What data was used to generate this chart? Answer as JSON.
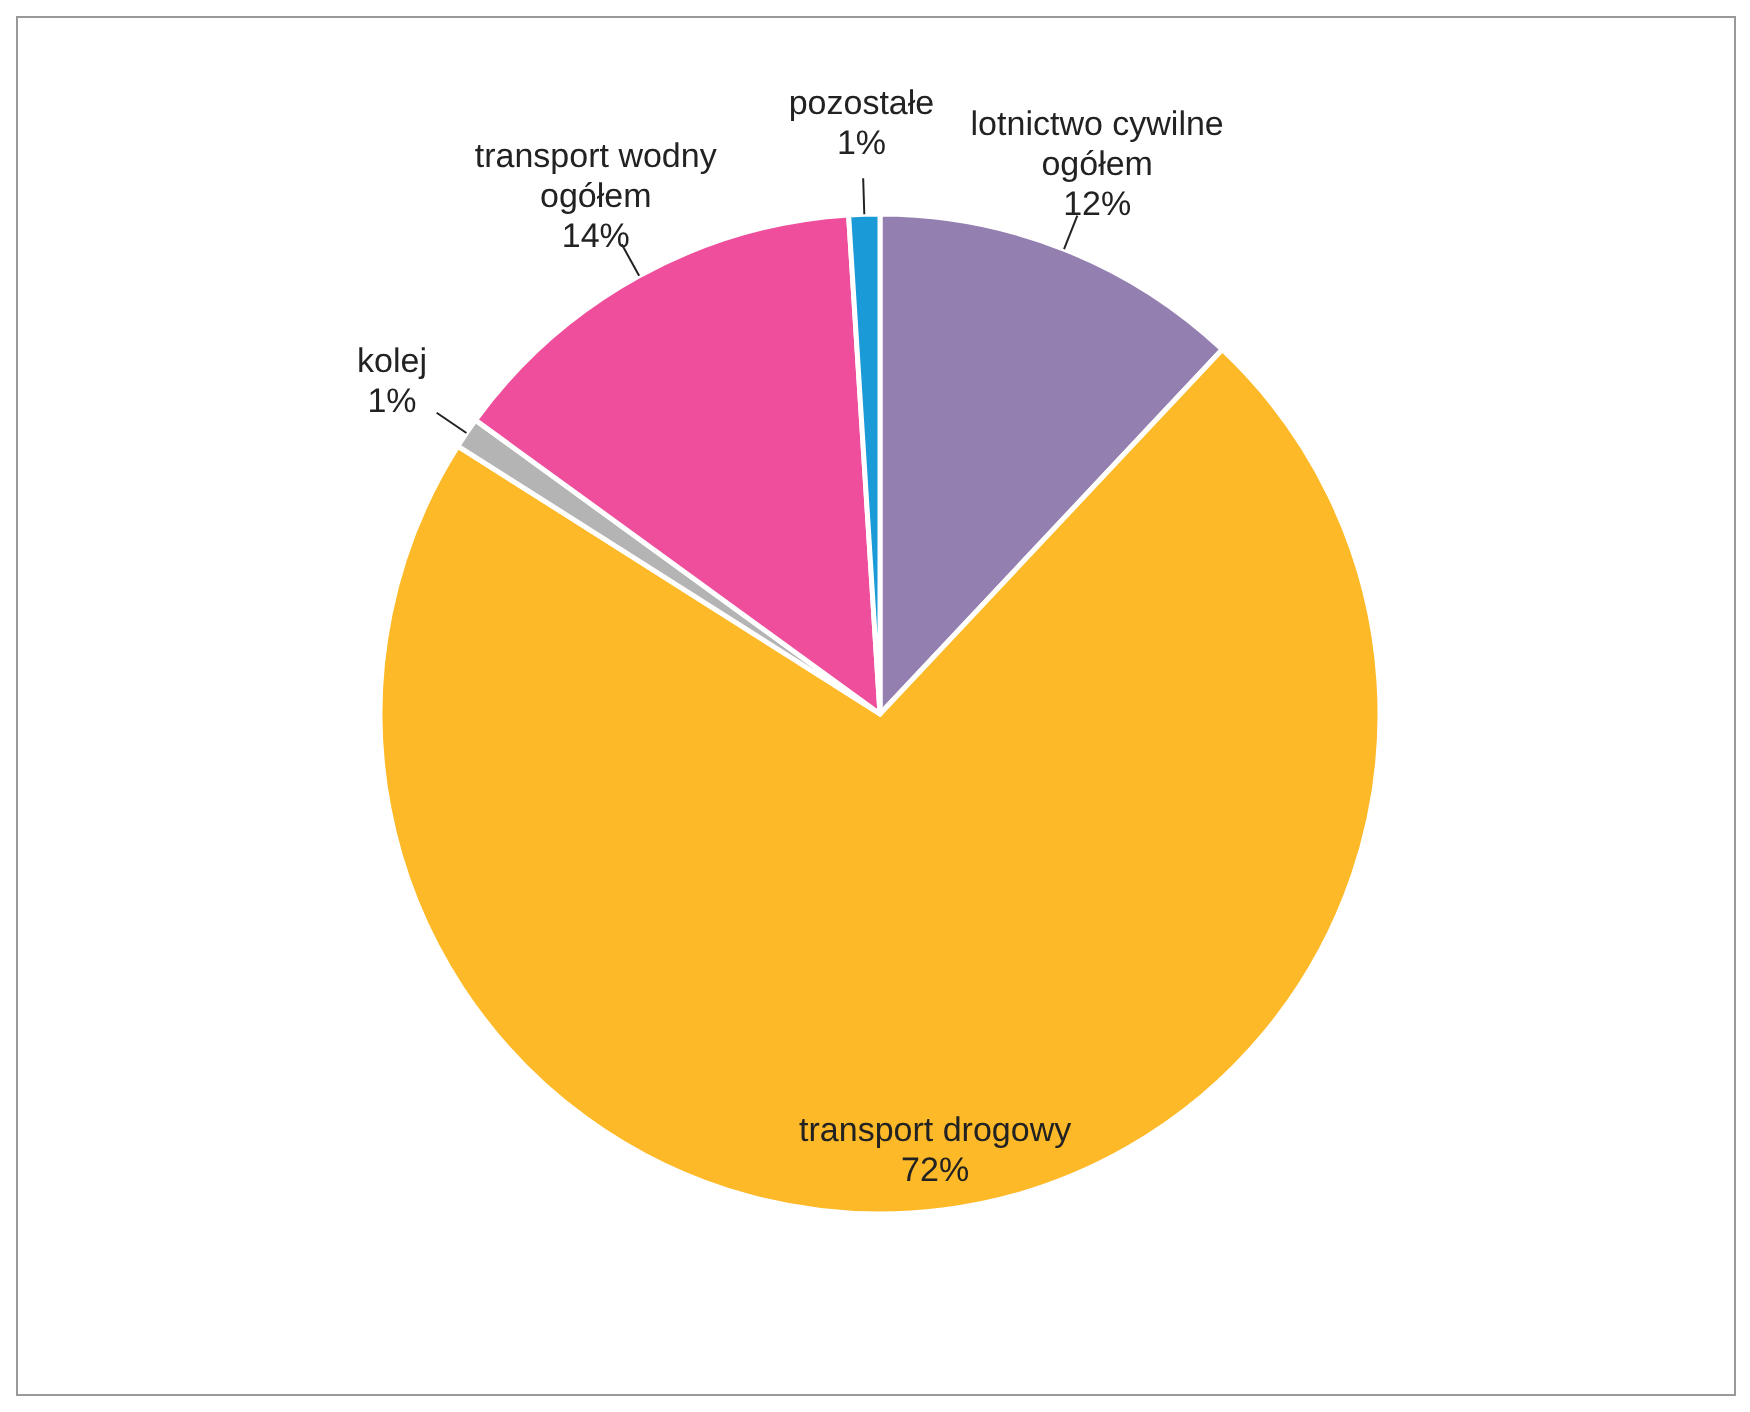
{
  "chart_data": {
    "type": "pie",
    "categories": [
      "lotnictwo cywilne ogółem",
      "transport drogowy",
      "kolej",
      "transport wodny ogółem",
      "pozostałe"
    ],
    "values": [
      12,
      72,
      1,
      14,
      1
    ],
    "colors": [
      "#9480b0",
      "#fdb927",
      "#b4b4b4",
      "#ee4e9b",
      "#1a9ad6"
    ],
    "value_labels": [
      "12%",
      "72%",
      "1%",
      "14%",
      "1%"
    ]
  }
}
